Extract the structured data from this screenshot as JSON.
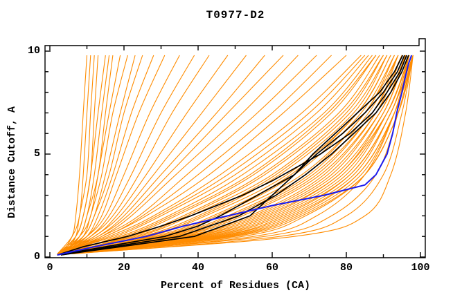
{
  "chart_data": {
    "type": "line",
    "title": "T0977-D2",
    "xlabel": "Percent of Residues (CA)",
    "ylabel": "Distance Cutoff, A",
    "xlim": [
      0,
      100
    ],
    "ylim": [
      0,
      10
    ],
    "grid": false,
    "legend": "none",
    "x_tick_values": [
      0,
      20,
      40,
      60,
      80,
      100
    ],
    "x_tick_labels": [
      "0",
      "20",
      "40",
      "60",
      "80",
      "100"
    ],
    "x_minor_ticks": [
      10,
      30,
      50,
      70,
      90
    ],
    "y_tick_values": [
      0,
      5,
      10
    ],
    "y_tick_labels": [
      "0",
      "5",
      "10"
    ],
    "y_minor_ticks": [
      1,
      2,
      3,
      4,
      6,
      7,
      8,
      9
    ],
    "colors": {
      "background": "#ffffff",
      "axis": "#000000",
      "model_ensemble": "#ff8c00",
      "highlight_models": "#000000",
      "selected_model": "#1a1aee"
    },
    "series": [
      {
        "name": "highlight-model-1",
        "color_key": "highlight_models",
        "points": [
          [
            0.1,
            2
          ],
          [
            0.5,
            9
          ],
          [
            1,
            21
          ],
          [
            1.5,
            30
          ],
          [
            2,
            38
          ],
          [
            3,
            52
          ],
          [
            3.7,
            60
          ],
          [
            4.5,
            68
          ],
          [
            5,
            73
          ],
          [
            6,
            81
          ],
          [
            7,
            87
          ],
          [
            8,
            91
          ],
          [
            9,
            94.5
          ],
          [
            9.8,
            96.3
          ]
        ]
      },
      {
        "name": "highlight-model-2",
        "color_key": "highlight_models",
        "points": [
          [
            0.1,
            2
          ],
          [
            0.5,
            15
          ],
          [
            1,
            31
          ],
          [
            1.5,
            40
          ],
          [
            2,
            46
          ],
          [
            3,
            56
          ],
          [
            3.5,
            61
          ],
          [
            4,
            66
          ],
          [
            5,
            72
          ],
          [
            6,
            79
          ],
          [
            7,
            85
          ],
          [
            8,
            90
          ],
          [
            9,
            93.8
          ],
          [
            9.8,
            95.7
          ]
        ]
      },
      {
        "name": "highlight-model-3",
        "color_key": "highlight_models",
        "points": [
          [
            0.1,
            3
          ],
          [
            0.5,
            17
          ],
          [
            1,
            35
          ],
          [
            2,
            51
          ],
          [
            3,
            61
          ],
          [
            4,
            69
          ],
          [
            5,
            76
          ],
          [
            6,
            82
          ],
          [
            7,
            88
          ],
          [
            8,
            92
          ],
          [
            9,
            95
          ],
          [
            9.8,
            96.8
          ]
        ]
      },
      {
        "name": "highlight-model-4",
        "color_key": "highlight_models",
        "points": [
          [
            0.1,
            3
          ],
          [
            0.5,
            19
          ],
          [
            1,
            39
          ],
          [
            2,
            54
          ],
          [
            2.5,
            57
          ],
          [
            3,
            60
          ],
          [
            4,
            66
          ],
          [
            5,
            71
          ],
          [
            6,
            77
          ],
          [
            7,
            83
          ],
          [
            8,
            89
          ],
          [
            9,
            93
          ],
          [
            9.8,
            95.2
          ]
        ]
      },
      {
        "name": "selected-model",
        "color_key": "selected_model",
        "points": [
          [
            0.1,
            2
          ],
          [
            0.5,
            12
          ],
          [
            1,
            26
          ],
          [
            1.5,
            36
          ],
          [
            2,
            48
          ],
          [
            2.5,
            60
          ],
          [
            3,
            74
          ],
          [
            3.5,
            85
          ],
          [
            4,
            88
          ],
          [
            5,
            91
          ],
          [
            6,
            92.5
          ],
          [
            7,
            93.6
          ],
          [
            8,
            95
          ],
          [
            8.8,
            96
          ],
          [
            9.4,
            96.8
          ],
          [
            9.8,
            97.6
          ]
        ]
      }
    ],
    "ensemble_cutoff_anchors": [
      0.15,
      1,
      2,
      4,
      7,
      9.8
    ],
    "ensemble_curves_percent": [
      [
        3,
        6,
        7,
        8,
        9,
        10
      ],
      [
        2,
        6,
        8,
        9,
        10,
        11
      ],
      [
        4,
        7,
        8,
        10,
        11,
        12
      ],
      [
        3,
        7,
        9,
        11,
        12,
        13
      ],
      [
        2,
        7,
        9,
        11,
        13,
        15
      ],
      [
        4,
        8,
        10,
        12,
        14,
        16
      ],
      [
        3,
        8,
        10,
        13,
        15,
        17
      ],
      [
        2,
        8,
        11,
        13,
        16,
        19
      ],
      [
        4,
        9,
        11,
        14,
        17,
        21
      ],
      [
        3,
        9,
        12,
        15,
        19,
        23
      ],
      [
        2,
        9,
        12,
        16,
        20,
        25
      ],
      [
        4,
        10,
        13,
        17,
        22,
        28
      ],
      [
        3,
        10,
        14,
        18,
        24,
        31
      ],
      [
        2,
        10,
        15,
        20,
        27,
        35
      ],
      [
        4,
        11,
        16,
        22,
        30,
        39
      ],
      [
        3,
        11,
        17,
        24,
        33,
        43
      ],
      [
        2,
        12,
        18,
        26,
        37,
        48
      ],
      [
        4,
        12,
        19,
        28,
        41,
        53
      ],
      [
        3,
        13,
        20,
        30,
        45,
        58
      ],
      [
        2,
        13,
        21,
        32,
        48,
        63
      ],
      [
        4,
        14,
        22,
        34,
        52,
        67
      ],
      [
        3,
        14,
        24,
        37,
        56,
        72
      ],
      [
        2,
        15,
        25,
        40,
        60,
        76
      ],
      [
        4,
        15,
        26,
        43,
        63,
        80
      ],
      [
        3,
        16,
        28,
        46,
        68,
        84
      ],
      [
        2,
        17,
        29,
        48,
        70,
        85
      ],
      [
        4,
        18,
        30,
        50,
        72,
        86
      ],
      [
        3,
        19,
        32,
        52,
        74,
        87
      ],
      [
        2,
        20,
        33,
        54,
        75,
        88
      ],
      [
        4,
        21,
        34,
        55,
        76,
        88
      ],
      [
        3,
        22,
        36,
        57,
        78,
        89
      ],
      [
        2,
        23,
        37,
        58,
        79,
        90
      ],
      [
        4,
        24,
        38,
        60,
        80,
        90
      ],
      [
        3,
        25,
        40,
        61,
        81,
        91
      ],
      [
        2,
        26,
        41,
        62,
        82,
        91
      ],
      [
        4,
        27,
        42,
        64,
        83,
        92
      ],
      [
        3,
        28,
        44,
        65,
        83,
        92
      ],
      [
        2,
        29,
        45,
        66,
        84,
        93
      ],
      [
        4,
        30,
        46,
        68,
        85,
        93
      ],
      [
        3,
        31,
        48,
        69,
        85,
        94
      ],
      [
        4,
        32,
        49,
        70,
        86,
        94
      ],
      [
        2,
        33,
        50,
        71,
        87,
        94
      ],
      [
        3,
        34,
        51,
        72,
        87,
        95
      ],
      [
        4,
        35,
        52,
        73,
        88,
        95
      ],
      [
        2,
        36,
        54,
        74,
        88,
        95
      ],
      [
        5,
        37,
        55,
        75,
        89,
        96
      ],
      [
        3,
        38,
        56,
        76,
        89,
        96
      ],
      [
        4,
        39,
        57,
        77,
        90,
        96
      ],
      [
        2,
        40,
        58,
        78,
        90,
        96
      ],
      [
        5,
        41,
        59,
        78,
        91,
        97
      ],
      [
        3,
        42,
        60,
        79,
        91,
        97
      ],
      [
        4,
        43,
        61,
        80,
        91,
        97
      ],
      [
        5,
        44,
        62,
        81,
        92,
        97
      ],
      [
        3,
        45,
        63,
        81,
        92,
        97
      ],
      [
        6,
        46,
        64,
        82,
        92,
        98
      ],
      [
        4,
        47,
        65,
        83,
        93,
        98
      ],
      [
        5,
        48,
        66,
        83,
        93,
        98
      ],
      [
        6,
        49,
        67,
        84,
        93,
        98
      ],
      [
        4,
        50,
        68,
        85,
        94,
        98
      ],
      [
        6,
        52,
        69,
        85,
        94,
        98
      ],
      [
        6,
        55,
        72,
        85,
        93,
        97
      ],
      [
        4,
        58,
        76,
        88,
        94,
        98
      ],
      [
        6,
        62,
        80,
        90,
        95,
        98
      ],
      [
        5,
        66,
        85,
        92,
        96,
        98
      ]
    ]
  }
}
